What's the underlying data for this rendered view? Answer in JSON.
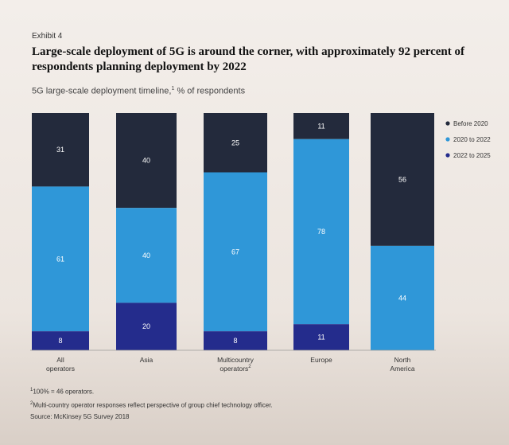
{
  "exhibit_label": "Exhibit 4",
  "headline": "Large-scale deployment of 5G is around the corner, with approximately 92 percent of respondents planning deployment by 2022",
  "subtitle_text": "5G large-scale deployment timeline,",
  "subtitle_marker": "1",
  "subtitle_unit": "% of respondents",
  "footnotes": {
    "note1_marker": "1",
    "note1_text": "100% = 46 operators.",
    "note2_marker": "2",
    "note2_text": "Multi-country operator responses reflect perspective of group chief technology officer.",
    "source": "Source: McKinsey 5G Survey 2018"
  },
  "chart_data": {
    "type": "bar",
    "stacked": true,
    "categories": [
      "All operators",
      "Asia",
      "Multicountry operators",
      "Europe",
      "North America"
    ],
    "category_footnote_markers": [
      "",
      "",
      "2",
      "",
      ""
    ],
    "series": [
      {
        "name": "Before 2020",
        "values": [
          31,
          40,
          25,
          11,
          56
        ],
        "color": "#232a3c"
      },
      {
        "name": "2020 to 2022",
        "values": [
          61,
          40,
          67,
          78,
          44
        ],
        "color": "#2f97d8"
      },
      {
        "name": "2022 to 2025",
        "values": [
          8,
          20,
          8,
          11,
          null
        ],
        "color": "#242c8c"
      }
    ],
    "ylim": [
      0,
      100
    ],
    "legend_position": "right",
    "grid": false
  }
}
